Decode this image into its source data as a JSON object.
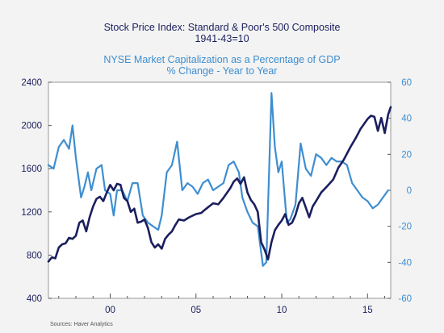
{
  "chart_data": {
    "type": "line",
    "title_lines": [
      "Stock Price Index: Standard & Poor's 500 Composite",
      "1941-43=10"
    ],
    "subtitle_lines": [
      "NYSE Market Capitalization as a Percentage of GDP",
      "% Change - Year to Year"
    ],
    "source": "Sources:  Haver Analytics",
    "x_ticks": [
      "00",
      "05",
      "10",
      "15"
    ],
    "x_tick_years": [
      2000,
      2005,
      2010,
      2015
    ],
    "xlim": [
      1996.4,
      2016.35
    ],
    "left_axis": {
      "ticks": [
        "2400",
        "2000",
        "1600",
        "1200",
        "800",
        "400"
      ],
      "tick_values": [
        2400,
        2000,
        1600,
        1200,
        800,
        400
      ],
      "ylim": [
        400,
        2400
      ],
      "color": "#1b1f5e"
    },
    "right_axis": {
      "ticks": [
        "60",
        "40",
        "20",
        "0",
        "-20",
        "-40",
        "-60"
      ],
      "tick_values": [
        60,
        40,
        20,
        0,
        -20,
        -40,
        -60
      ],
      "ylim": [
        -60,
        60
      ],
      "color": "#3e8ed0"
    },
    "grid": false,
    "series": [
      {
        "axis": "left",
        "color": "#1b1f5e",
        "x": [
          1996.4,
          1996.6,
          1996.8,
          1997.0,
          1997.2,
          1997.4,
          1997.6,
          1997.8,
          1998.0,
          1998.2,
          1998.4,
          1998.6,
          1998.8,
          1999.0,
          1999.2,
          1999.4,
          1999.6,
          1999.8,
          2000.0,
          2000.2,
          2000.4,
          2000.6,
          2000.8,
          2001.0,
          2001.2,
          2001.4,
          2001.6,
          2001.8,
          2002.0,
          2002.2,
          2002.4,
          2002.6,
          2002.8,
          2003.0,
          2003.2,
          2003.4,
          2003.6,
          2003.8,
          2004.0,
          2004.3,
          2004.6,
          2005.0,
          2005.3,
          2005.6,
          2006.0,
          2006.3,
          2006.6,
          2007.0,
          2007.2,
          2007.4,
          2007.6,
          2007.8,
          2008.0,
          2008.2,
          2008.4,
          2008.6,
          2008.8,
          2009.0,
          2009.2,
          2009.4,
          2009.6,
          2009.8,
          2010.0,
          2010.2,
          2010.4,
          2010.6,
          2010.8,
          2011.0,
          2011.2,
          2011.4,
          2011.6,
          2011.8,
          2012.0,
          2012.3,
          2012.6,
          2013.0,
          2013.3,
          2013.6,
          2014.0,
          2014.3,
          2014.6,
          2015.0,
          2015.2,
          2015.4,
          2015.6,
          2015.8,
          2016.0,
          2016.2,
          2016.35
        ],
        "values": [
          740,
          780,
          770,
          870,
          900,
          910,
          960,
          950,
          980,
          1100,
          1120,
          1020,
          1150,
          1250,
          1320,
          1340,
          1300,
          1380,
          1450,
          1400,
          1460,
          1450,
          1330,
          1300,
          1200,
          1230,
          1100,
          1110,
          1130,
          1050,
          920,
          870,
          900,
          860,
          950,
          990,
          1020,
          1080,
          1130,
          1120,
          1150,
          1180,
          1190,
          1230,
          1280,
          1270,
          1330,
          1420,
          1480,
          1510,
          1460,
          1520,
          1380,
          1310,
          1270,
          1200,
          920,
          850,
          760,
          920,
          1030,
          1080,
          1120,
          1180,
          1080,
          1100,
          1170,
          1280,
          1330,
          1240,
          1150,
          1250,
          1300,
          1380,
          1430,
          1500,
          1610,
          1680,
          1800,
          1880,
          1970,
          2060,
          2090,
          2080,
          1950,
          2070,
          1930,
          2100,
          2170
        ]
      },
      {
        "axis": "right",
        "color": "#3e8ed0",
        "x": [
          1996.4,
          1996.7,
          1997.0,
          1997.3,
          1997.6,
          1997.8,
          1998.0,
          1998.3,
          1998.5,
          1998.7,
          1998.9,
          1999.2,
          1999.5,
          1999.7,
          2000.0,
          2000.2,
          2000.4,
          2000.7,
          2001.0,
          2001.3,
          2001.6,
          2001.9,
          2002.2,
          2002.5,
          2002.8,
          2003.0,
          2003.3,
          2003.6,
          2003.9,
          2004.2,
          2004.5,
          2004.8,
          2005.1,
          2005.4,
          2005.7,
          2006.0,
          2006.3,
          2006.6,
          2006.9,
          2007.2,
          2007.5,
          2007.7,
          2008.0,
          2008.3,
          2008.6,
          2008.9,
          2009.1,
          2009.4,
          2009.6,
          2009.8,
          2010.0,
          2010.3,
          2010.5,
          2010.8,
          2011.1,
          2011.4,
          2011.7,
          2012.0,
          2012.3,
          2012.6,
          2012.9,
          2013.2,
          2013.5,
          2013.8,
          2014.1,
          2014.4,
          2014.7,
          2015.0,
          2015.3,
          2015.6,
          2015.9,
          2016.2
        ],
        "values": [
          14,
          12,
          24,
          28,
          23,
          36,
          18,
          -4,
          2,
          10,
          0,
          12,
          14,
          0,
          -2,
          -14,
          0,
          0,
          -6,
          4,
          4,
          -14,
          -18,
          -20,
          -22,
          -14,
          10,
          14,
          27,
          0,
          4,
          2,
          -2,
          4,
          6,
          0,
          2,
          4,
          14,
          16,
          10,
          -4,
          -12,
          -18,
          -20,
          -42,
          -40,
          54,
          24,
          10,
          16,
          -18,
          -16,
          -8,
          26,
          12,
          8,
          20,
          18,
          14,
          18,
          16,
          16,
          14,
          4,
          0,
          -4,
          -6,
          -10,
          -8,
          -4,
          0
        ]
      }
    ]
  }
}
